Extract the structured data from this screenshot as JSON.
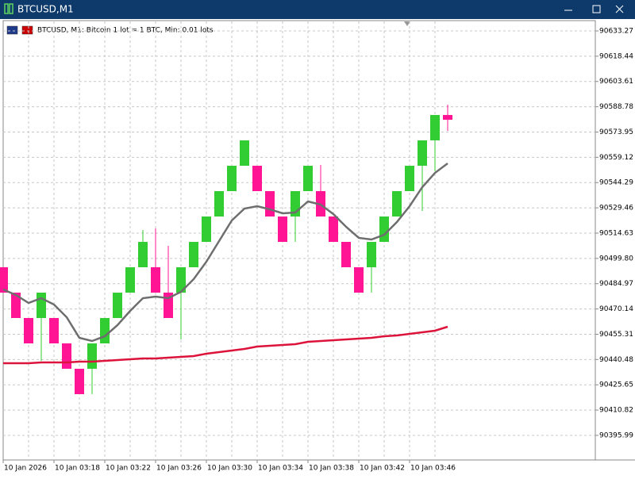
{
  "window_title": "BTCUSD,M1",
  "chart_data": {
    "type": "candlestick",
    "title": "BTCUSD, M1:  Bitcoin 1 lot = 1 BTC, Min: 0.01 lots",
    "categories": [
      "10 Jan 2026",
      null,
      null,
      null,
      "10 Jan 03:18",
      null,
      null,
      null,
      "10 Jan 03:22",
      null,
      null,
      null,
      "10 Jan 03:26",
      null,
      null,
      null,
      "10 Jan 03:30",
      null,
      null,
      null,
      "10 Jan 03:34",
      null,
      null,
      null,
      "10 Jan 03:38",
      null,
      null,
      null,
      "10 Jan 03:42",
      null,
      null,
      null,
      "10 Jan 03:46",
      null,
      null,
      null
    ],
    "open": [
      90494.61,
      90479.72,
      90464.83,
      90464.83,
      90464.83,
      90449.94,
      90435.05,
      90435.05,
      90449.94,
      90464.83,
      90479.72,
      90494.61,
      90494.61,
      90479.72,
      90479.72,
      90494.61,
      90509.5,
      90524.39,
      90539.28,
      90554.17,
      90554.17,
      90539.28,
      90524.39,
      90524.39,
      90539.28,
      90539.28,
      90524.39,
      90509.5,
      90494.61,
      90494.61,
      90509.5,
      90524.39,
      90539.28,
      90554.17,
      90569.06,
      90583.95
    ],
    "high": [
      90494.61,
      90479.72,
      90464.83,
      90479.72,
      90464.83,
      90449.94,
      90435.05,
      90449.94,
      90464.83,
      90479.72,
      90494.61,
      90516.48,
      90517.41,
      90507.17,
      90494.61,
      90509.5,
      90524.39,
      90539.28,
      90554.17,
      90569.06,
      90554.17,
      90539.28,
      90524.39,
      90539.28,
      90554.17,
      90554.64,
      90524.39,
      90509.5,
      90494.61,
      90509.5,
      90524.39,
      90539.28,
      90554.17,
      90569.06,
      90583.95,
      90589.99
    ],
    "low": [
      90479.72,
      90464.83,
      90449.94,
      90439.67,
      90449.94,
      90435.05,
      90420.16,
      90420.16,
      90449.94,
      90464.83,
      90479.72,
      90494.61,
      90479.72,
      90464.83,
      90452.27,
      90494.61,
      90509.5,
      90524.39,
      90539.28,
      90554.17,
      90539.28,
      90524.39,
      90509.5,
      90509.5,
      90539.28,
      90524.39,
      90509.5,
      90494.61,
      90479.72,
      90479.72,
      90509.5,
      90524.39,
      90539.28,
      90527.64,
      90550.91,
      90574.64
    ],
    "close": [
      90479.72,
      90464.83,
      90449.94,
      90479.72,
      90449.94,
      90435.05,
      90420.16,
      90449.94,
      90464.83,
      90479.72,
      90494.61,
      90509.5,
      90479.72,
      90464.83,
      90494.61,
      90509.5,
      90524.39,
      90539.28,
      90554.17,
      90569.06,
      90539.28,
      90524.39,
      90509.5,
      90539.28,
      90554.17,
      90524.39,
      90509.5,
      90494.61,
      90479.72,
      90509.5,
      90524.39,
      90539.28,
      90554.17,
      90569.06,
      90583.95,
      90581.16
    ],
    "up_color": "#32cd32",
    "down_color": "#ff1493",
    "lines": [
      {
        "color": "#6e6e6e",
        "values": [
          90481.58,
          90478.33,
          90473.67,
          90476.46,
          90472.74,
          90465.3,
          90453.2,
          90451.34,
          90454.13,
          90460.64,
          90469.02,
          90476.46,
          90477.39,
          90476.46,
          90480.19,
          90487.63,
          90497.87,
          90509.97,
          90522.06,
          90529.04,
          90530.44,
          90528.58,
          90526.25,
          90526.72,
          90533.23,
          90531.37,
          90525.79,
          90518.34,
          90511.83,
          90510.9,
          90513.69,
          90521.13,
          90530.44,
          90541.61,
          90549.98,
          90555.56
        ]
      },
      {
        "color": "#dc143c",
        "values": [
          90438.31,
          90438.31,
          90438.31,
          90438.77,
          90438.77,
          90438.77,
          90439.24,
          90439.24,
          90439.71,
          90440.17,
          90440.64,
          90441.1,
          90441.1,
          90441.57,
          90442.03,
          90442.5,
          90443.89,
          90444.82,
          90445.75,
          90446.68,
          90448.08,
          90448.55,
          90449.01,
          90449.48,
          90450.87,
          90451.34,
          90451.8,
          90452.27,
          90452.73,
          90453.2,
          90454.13,
          90454.59,
          90455.53,
          90456.46,
          90457.39,
          90459.71
        ]
      }
    ],
    "ylim": [
      90381.54,
      90638.85
    ],
    "yticks": [
      90633.27,
      90618.44,
      90603.61,
      90588.78,
      90573.95,
      90559.12,
      90544.29,
      90529.46,
      90514.63,
      {
        "value": 90499.8,
        "label": "90499.80"
      },
      90484.97,
      90470.14,
      90455.31,
      90440.48,
      90425.65,
      90410.82,
      90395.99
    ],
    "grid": true
  }
}
